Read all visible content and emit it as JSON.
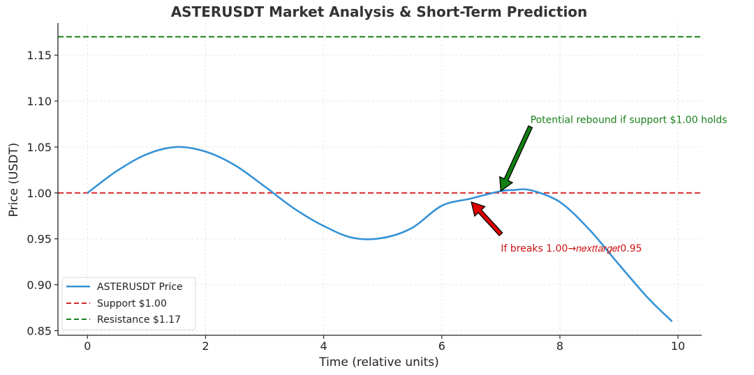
{
  "chart_data": {
    "type": "line",
    "title": "ASTERUSDT Market Analysis & Short-Term Prediction",
    "xlabel": "Time (relative units)",
    "ylabel": "Price (USDT)",
    "xlim": [
      -0.5,
      10.4
    ],
    "ylim": [
      0.845,
      1.185
    ],
    "xticks": [
      0,
      2,
      4,
      6,
      8,
      10
    ],
    "yticks": [
      0.85,
      0.9,
      0.95,
      1.0,
      1.05,
      1.1,
      1.15
    ],
    "grid": true,
    "legend_position": "lower-left",
    "series": [
      {
        "name": "ASTERUSDT Price",
        "color": "#3592d6",
        "style": "solid",
        "points": [
          [
            0,
            1.0
          ],
          [
            0.5,
            1.024
          ],
          [
            1.0,
            1.042
          ],
          [
            1.5,
            1.05
          ],
          [
            2.0,
            1.045
          ],
          [
            2.5,
            1.03
          ],
          [
            3.0,
            1.007
          ],
          [
            3.5,
            0.983
          ],
          [
            4.0,
            0.964
          ],
          [
            4.5,
            0.951
          ],
          [
            5.0,
            0.951
          ],
          [
            5.5,
            0.962
          ],
          [
            6.0,
            0.986
          ],
          [
            6.5,
            0.994
          ],
          [
            7.0,
            1.002
          ],
          [
            7.2,
            1.003
          ],
          [
            7.5,
            1.003
          ],
          [
            8.0,
            0.99
          ],
          [
            8.5,
            0.96
          ],
          [
            9.0,
            0.922
          ],
          [
            9.5,
            0.885
          ],
          [
            9.9,
            0.86
          ]
        ]
      },
      {
        "name": "Support $1.00",
        "color": "#d62728",
        "style": "dashed",
        "y": 1.0
      },
      {
        "name": "Resistance $1.17",
        "color": "#1a7f1a",
        "style": "dashed",
        "y": 1.17
      }
    ],
    "annotations": [
      {
        "text": "Potential rebound if support $1.00 holds",
        "color": "#1a7f1a",
        "arrow_color": "#128012",
        "text_at": [
          7.5,
          1.08
        ],
        "arrow_from": [
          7.5,
          1.072
        ],
        "arrow_to": [
          7.0,
          1.002
        ]
      },
      {
        "text": "If breaks 1.00→𝑛𝑒𝑥𝑡𝑡𝑎𝑟𝑔𝑒𝑡0.95",
        "color": "#cc1111",
        "arrow_color": "#e00000",
        "text_at": [
          7.0,
          0.94
        ],
        "arrow_from": [
          7.0,
          0.955
        ],
        "arrow_to": [
          6.5,
          0.99
        ]
      }
    ]
  }
}
